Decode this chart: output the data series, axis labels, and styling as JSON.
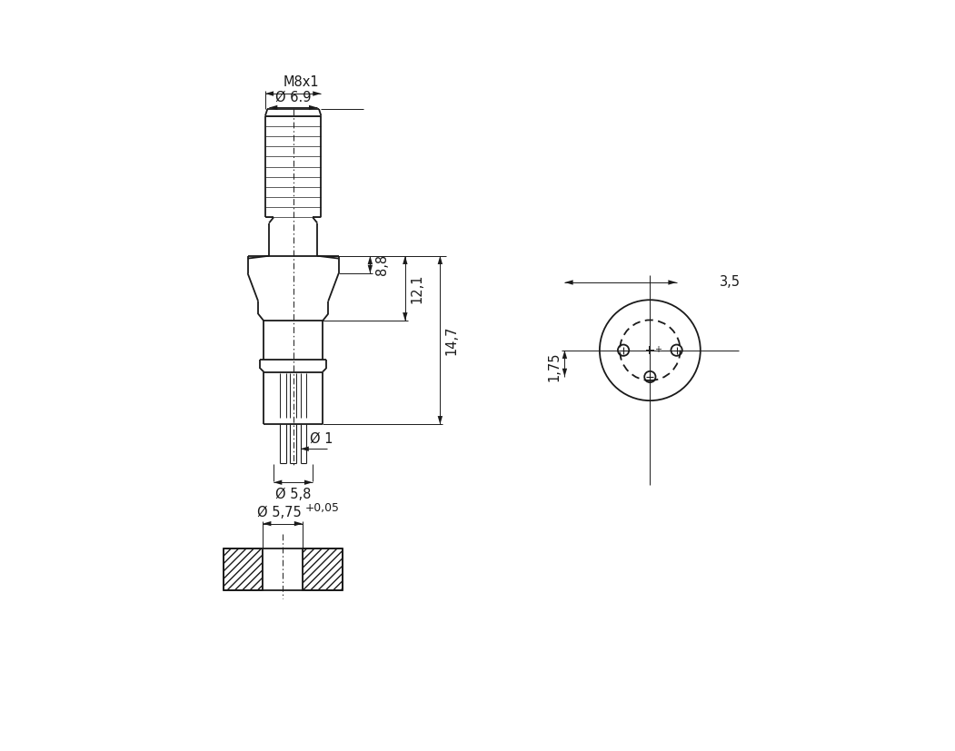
{
  "bg_color": "#ffffff",
  "line_color": "#1a1a1a",
  "lw": 1.3,
  "thin_lw": 0.7,
  "font_size": 10.5,
  "font_family": "Arial",
  "dims": {
    "M8x1_label": "M8x1",
    "phi69_label": "Ø 6.9",
    "phi1_label": "Ø 1",
    "phi58_label": "Ø 5,8",
    "d88_label": "8,8",
    "d121_label": "12,1",
    "d147_label": "14,7",
    "d35_label": "3,5",
    "d175_label": "1,75",
    "phi575_label": "Ø 5,75",
    "tol_label": "+0,05"
  }
}
